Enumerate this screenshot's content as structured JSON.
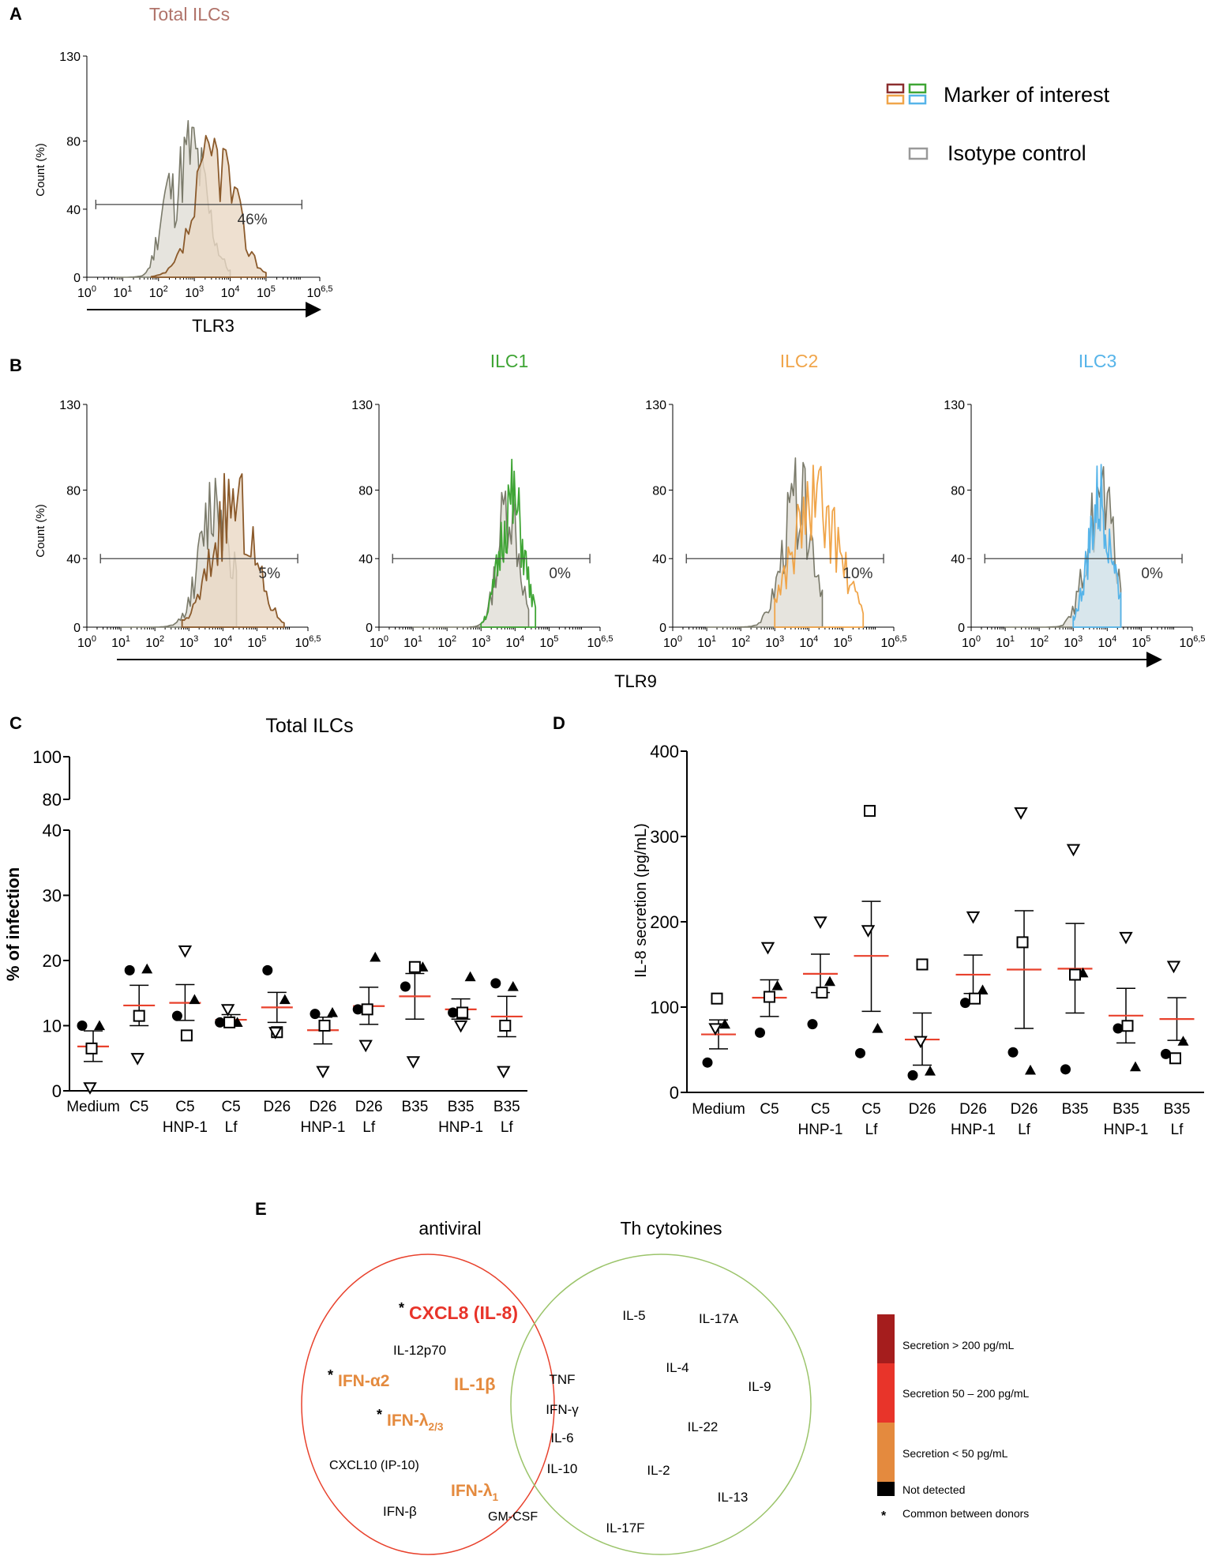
{
  "colors": {
    "brown": "#8b5a2b",
    "brown_fill": "#ead8c4",
    "iso": "#7a7a6a",
    "iso_fill": "#e6e4de",
    "green": "#3fa535",
    "orange": "#f0a54a",
    "blue": "#56b4e9",
    "red_line": "#e8412c",
    "venn_red": "#e8412c",
    "venn_green": "#9bc46a",
    "dark_red": "#a51d1d",
    "mid_red": "#e8342a",
    "orange_scale": "#e48a3e",
    "black": "#000000",
    "title_total": "#b0736a"
  },
  "panels": {
    "A": "A",
    "B": "B",
    "C": "C",
    "D": "D",
    "E": "E"
  },
  "panelA": {
    "title": "Total ILCs",
    "ylabel": "Count (%)",
    "yticks": [
      "130",
      "80",
      "40",
      "0"
    ],
    "xlabel": "TLR3",
    "gate_pct": "46%"
  },
  "legendA": {
    "marker": "Marker of interest",
    "isotype": "Isotype control"
  },
  "panelB": {
    "ylabel": "Count (%)",
    "xlabel": "TLR9",
    "plots": [
      {
        "title": "",
        "gate_pct": "5%",
        "color": "brown"
      },
      {
        "title": "ILC1",
        "gate_pct": "0%",
        "color": "green"
      },
      {
        "title": "ILC2",
        "gate_pct": "10%",
        "color": "orange"
      },
      {
        "title": "ILC3",
        "gate_pct": "0%",
        "color": "blue"
      }
    ]
  },
  "x_tick_labels": [
    {
      "b": "10",
      "e": "0"
    },
    {
      "b": "10",
      "e": "1"
    },
    {
      "b": "10",
      "e": "2"
    },
    {
      "b": "10",
      "e": "3"
    },
    {
      "b": "10",
      "e": "4"
    },
    {
      "b": "10",
      "e": "5"
    },
    {
      "b": "10",
      "e": "6,5"
    }
  ],
  "chart_data": [
    {
      "type": "scatter",
      "panel": "C",
      "title": "Total ILCs",
      "ylabel": "% of infection",
      "ylim_lower": [
        0,
        40
      ],
      "ylim_upper": [
        80,
        100
      ],
      "yticks_lower": [
        "0",
        "10",
        "20",
        "30",
        "40"
      ],
      "yticks_upper": [
        "80",
        "100"
      ],
      "categories": [
        [
          "Medium"
        ],
        [
          "C5"
        ],
        [
          "C5",
          "HNP-1"
        ],
        [
          "C5",
          "Lf"
        ],
        [
          "D26"
        ],
        [
          "D26",
          "HNP-1"
        ],
        [
          "D26",
          "Lf"
        ],
        [
          "B35"
        ],
        [
          "B35",
          "HNP-1"
        ],
        [
          "B35",
          "Lf"
        ]
      ],
      "mean": [
        6.8,
        13.1,
        13.5,
        10.9,
        12.8,
        9.3,
        13.0,
        14.5,
        12.5,
        11.4
      ],
      "sem_low": [
        4.5,
        10.0,
        10.8,
        10.0,
        10.5,
        7.2,
        10.2,
        11.0,
        11.0,
        8.3
      ],
      "sem_high": [
        9.2,
        16.2,
        16.3,
        11.7,
        15.1,
        11.3,
        15.9,
        18.0,
        14.1,
        14.5
      ],
      "donors": [
        {
          "marker": "circle",
          "values": [
            10,
            18.5,
            11.5,
            10.5,
            18.5,
            11.8,
            12.5,
            16,
            12,
            16.5
          ]
        },
        {
          "marker": "triangle",
          "values": [
            10,
            18.7,
            14,
            10.5,
            14,
            12,
            20.5,
            19,
            17.5,
            16
          ]
        },
        {
          "marker": "square",
          "values": [
            6.5,
            11.5,
            8.5,
            10.5,
            9,
            10,
            12.5,
            19,
            12,
            10
          ]
        },
        {
          "marker": "triangle-down",
          "values": [
            0.5,
            5,
            21.5,
            12.5,
            9,
            3,
            7,
            4.5,
            10,
            3
          ]
        }
      ]
    },
    {
      "type": "scatter",
      "panel": "D",
      "ylabel": "IL-8 secretion (pg/mL)",
      "ylim": [
        0,
        400
      ],
      "yticks": [
        "0",
        "100",
        "200",
        "300",
        "400"
      ],
      "categories": [
        [
          "Medium"
        ],
        [
          "C5"
        ],
        [
          "C5",
          "HNP-1"
        ],
        [
          "C5",
          "Lf"
        ],
        [
          "D26"
        ],
        [
          "D26",
          "HNP-1"
        ],
        [
          "D26",
          "Lf"
        ],
        [
          "B35"
        ],
        [
          "B35",
          "HNP-1"
        ],
        [
          "B35",
          "Lf"
        ]
      ],
      "mean": [
        68,
        111,
        139,
        160,
        62,
        138,
        144,
        145,
        90,
        86
      ],
      "sem_low": [
        51,
        89,
        117,
        95,
        32,
        116,
        75,
        93,
        58,
        61
      ],
      "sem_high": [
        85,
        132,
        162,
        224,
        93,
        161,
        213,
        198,
        122,
        111
      ],
      "donors": [
        {
          "marker": "circle",
          "values": [
            35,
            70,
            80,
            46,
            20,
            105,
            47,
            27,
            75,
            45
          ]
        },
        {
          "marker": "triangle",
          "values": [
            80,
            125,
            130,
            75,
            25,
            120,
            26,
            140,
            30,
            60
          ]
        },
        {
          "marker": "square",
          "values": [
            110,
            112,
            117,
            330,
            150,
            110,
            176,
            138,
            78,
            40
          ]
        },
        {
          "marker": "triangle-down",
          "values": [
            75,
            170,
            200,
            190,
            60,
            206,
            328,
            285,
            182,
            148
          ]
        }
      ]
    }
  ],
  "panelE": {
    "antiviral": "antiviral",
    "th": "Th cytokines",
    "left_items": [
      {
        "text": "CXCL8 (IL-8)",
        "star": true,
        "style": "mid_red"
      },
      {
        "text": "IL-12p70",
        "star": false,
        "style": "black"
      },
      {
        "text": "IFN-α2",
        "star": true,
        "style": "orange_scale"
      },
      {
        "text": "IL-1β",
        "star": false,
        "style": "orange_scale"
      },
      {
        "text": "IFN-λ",
        "sub": "2/3",
        "star": true,
        "style": "orange_scale"
      },
      {
        "text": "CXCL10 (IP-10)",
        "star": false,
        "style": "black"
      },
      {
        "text": "IFN-λ",
        "sub": "1",
        "star": false,
        "style": "orange_scale"
      },
      {
        "text": "IFN-β",
        "star": false,
        "style": "black"
      },
      {
        "text": "GM-CSF",
        "star": false,
        "style": "black"
      }
    ],
    "overlap_items": [
      "TNF",
      "IFN-γ",
      "IL-6",
      "IL-10"
    ],
    "right_items": [
      "IL-5",
      "IL-17A",
      "IL-4",
      "IL-9",
      "IL-22",
      "IL-2",
      "IL-13",
      "IL-17F"
    ],
    "scale": [
      {
        "label": "Secretion > 200 pg/mL",
        "color": "dark_red"
      },
      {
        "label": "Secretion 50 – 200 pg/mL",
        "color": "mid_red"
      },
      {
        "label": "Secretion < 50 pg/mL",
        "color": "orange_scale"
      },
      {
        "label": "Not detected",
        "color": "black"
      }
    ],
    "common_note": "Common between donors",
    "star_symbol": "*"
  }
}
